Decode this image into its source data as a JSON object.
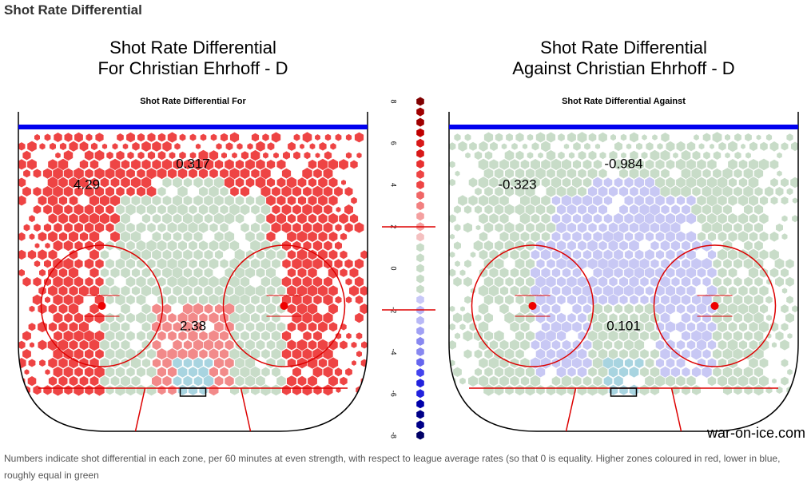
{
  "header": {
    "title": "Shot Rate Differential"
  },
  "panels": [
    {
      "title_line1": "Shot Rate Differential",
      "title_line2": "For Christian Ehrhoff - D",
      "subtitle": "Shot Rate Differential For",
      "zones": [
        "4.29",
        "0.317",
        "2.38"
      ]
    },
    {
      "title_line1": "Shot Rate Differential",
      "title_line2": "Against Christian Ehrhoff - D",
      "subtitle": "Shot Rate Differential Against",
      "zones": [
        "-0.323",
        "-0.984",
        "0.101"
      ]
    }
  ],
  "scale": {
    "ticks": [
      8,
      6,
      4,
      2,
      0,
      -2,
      -4,
      -6,
      -8
    ]
  },
  "watermark": "war-on-ice.com",
  "footer": "Numbers indicate shot differential in each zone, per 60 minutes at even strength, with respect to league average rates (so that 0 is equality. Higher zones coloured in red, lower in blue, roughly equal in green"
}
